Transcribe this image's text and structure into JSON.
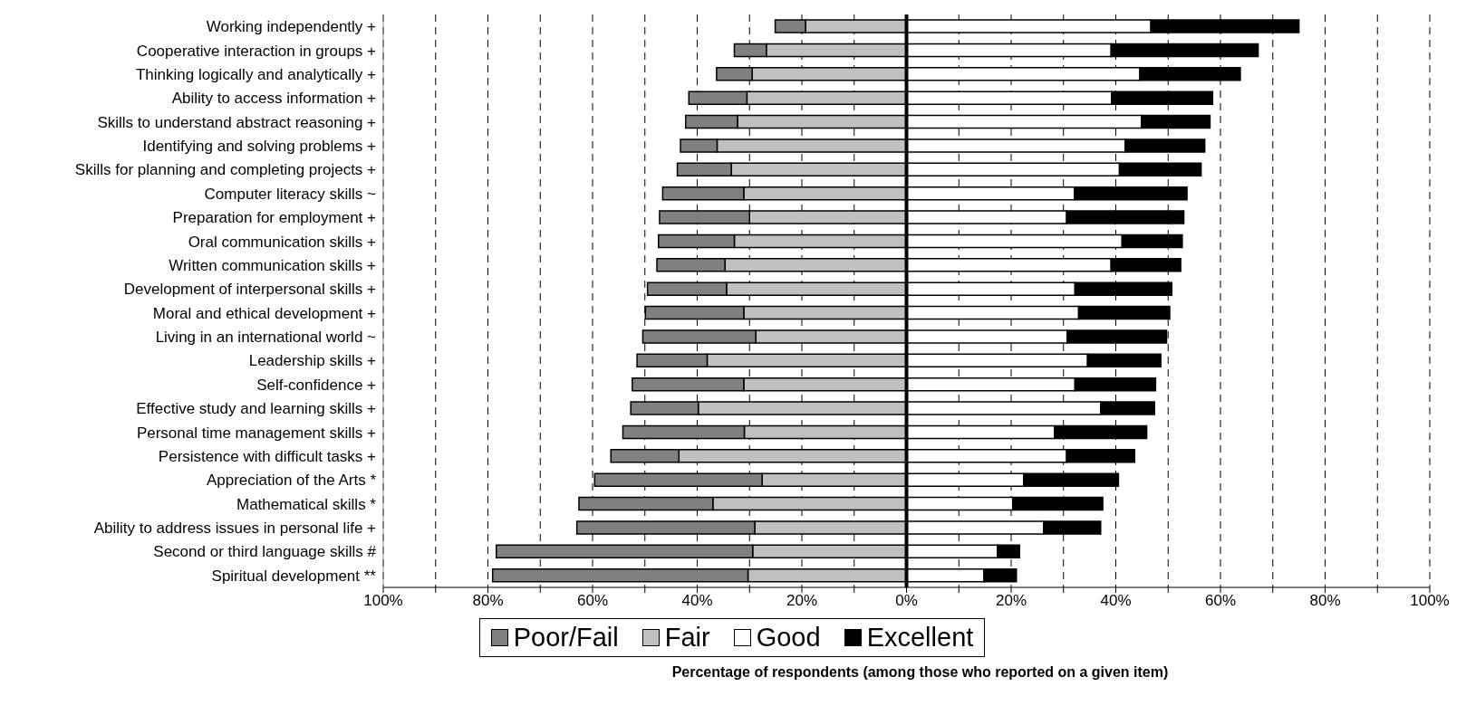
{
  "chart_data": {
    "type": "bar",
    "orientation": "horizontal",
    "stacked": true,
    "xlabel": "Percentage of respondents (among those who reported on a given item)",
    "categories": [
      "Working independently +",
      "Cooperative interaction in groups +",
      "Thinking logically and analytically +",
      "Ability to access information +",
      "Skills to understand abstract reasoning +",
      "Identifying and solving problems +",
      "Skills for planning and completing projects +",
      "Computer literacy skills ~",
      "Preparation for employment +",
      "Oral communication skills +",
      "Written communication skills +",
      "Development of interpersonal skills +",
      "Moral and ethical development +",
      "Living in an international world  ~",
      "Leadership skills +",
      "Self-confidence +",
      "Effective study and learning skills +",
      "Personal time management skills +",
      "Persistence with difficult tasks +",
      "Appreciation of the Arts *",
      "Mathematical skills *",
      "Ability to address issues in personal life +",
      "Second or third language skills #",
      "Spiritual development **"
    ],
    "series": [
      {
        "name": "Fair",
        "color": "#c0c0c0",
        "values": [
          -19.3,
          -26.8,
          -29.5,
          -30.5,
          -32.3,
          -36.2,
          -33.5,
          -31.1,
          -30.0,
          -32.9,
          -34.7,
          -34.4,
          -31.1,
          -28.8,
          -38.1,
          -31.1,
          -39.8,
          -31.0,
          -43.5,
          -27.6,
          -37.0,
          -29.0,
          -29.4,
          -30.3
        ]
      },
      {
        "name": "Poor/Fail",
        "color": "#808080",
        "values": [
          -5.8,
          -6.1,
          -6.8,
          -11.1,
          -9.9,
          -7.0,
          -10.3,
          -15.5,
          -17.2,
          -14.5,
          -13.0,
          -15.1,
          -18.8,
          -21.6,
          -13.4,
          -21.3,
          -12.9,
          -23.2,
          -13.0,
          -32.0,
          -25.6,
          -34.0,
          -49.0,
          -48.8
        ]
      },
      {
        "name": "Good",
        "color": "#ffffff",
        "values": [
          46.7,
          39.1,
          44.6,
          39.2,
          44.9,
          41.8,
          40.7,
          32.1,
          30.6,
          41.2,
          39.1,
          32.2,
          32.9,
          30.7,
          34.6,
          32.2,
          37.1,
          28.3,
          30.6,
          22.4,
          20.3,
          26.2,
          17.4,
          14.8
        ]
      },
      {
        "name": "Excellent",
        "color": "#000000",
        "values": [
          28.3,
          28.1,
          19.2,
          19.3,
          13.1,
          15.2,
          15.6,
          21.5,
          22.4,
          11.5,
          13.3,
          18.5,
          17.4,
          19.0,
          14.0,
          15.4,
          10.3,
          17.6,
          13.0,
          18.1,
          17.2,
          10.9,
          4.2,
          6.2
        ]
      }
    ],
    "xlim": [
      -100,
      100
    ],
    "xticks": [
      {
        "value": -100,
        "label": "100%"
      },
      {
        "value": -90,
        "label": null
      },
      {
        "value": -80,
        "label": "80%"
      },
      {
        "value": -70,
        "label": null
      },
      {
        "value": -60,
        "label": "60%"
      },
      {
        "value": -50,
        "label": null
      },
      {
        "value": -40,
        "label": "40%"
      },
      {
        "value": -30,
        "label": null
      },
      {
        "value": -20,
        "label": "20%"
      },
      {
        "value": -10,
        "label": null
      },
      {
        "value": 0,
        "label": "0%"
      },
      {
        "value": 10,
        "label": null
      },
      {
        "value": 20,
        "label": "20%"
      },
      {
        "value": 30,
        "label": null
      },
      {
        "value": 40,
        "label": "40%"
      },
      {
        "value": 50,
        "label": null
      },
      {
        "value": 60,
        "label": "60%"
      },
      {
        "value": 70,
        "label": null
      },
      {
        "value": 80,
        "label": "80%"
      },
      {
        "value": 90,
        "label": null
      },
      {
        "value": 100,
        "label": "100%"
      }
    ],
    "ref_lines": [
      {
        "axis": "x",
        "value": 0,
        "color": "#000000"
      }
    ],
    "grid": "x",
    "legend": "bottom"
  }
}
